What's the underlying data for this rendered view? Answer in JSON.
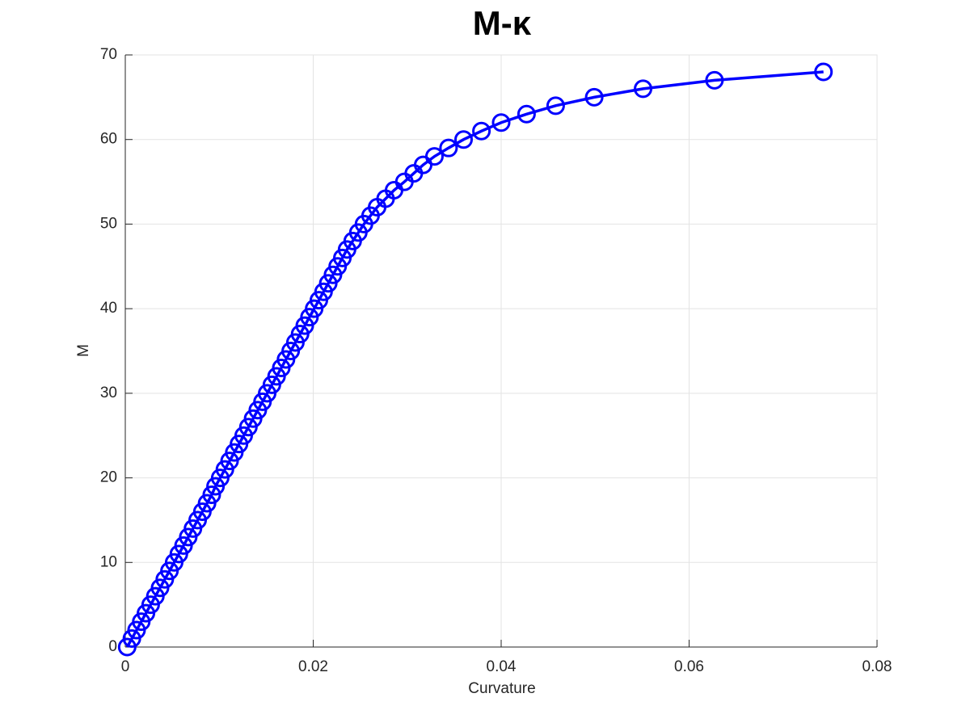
{
  "chart_data": {
    "type": "line",
    "title": "M-κ",
    "xlabel": "Curvature",
    "ylabel": "M",
    "x": [
      0.0002,
      0.0007,
      0.0012,
      0.0017,
      0.0022,
      0.0027,
      0.0032,
      0.0037,
      0.0042,
      0.0047,
      0.0052,
      0.0057,
      0.0062,
      0.0067,
      0.0072,
      0.0077,
      0.0082,
      0.0087,
      0.0092,
      0.0096,
      0.0101,
      0.0106,
      0.0111,
      0.0116,
      0.0121,
      0.0126,
      0.0131,
      0.0136,
      0.0141,
      0.0146,
      0.0151,
      0.0156,
      0.0161,
      0.0166,
      0.0171,
      0.0176,
      0.0181,
      0.0186,
      0.0191,
      0.0196,
      0.0201,
      0.0206,
      0.0211,
      0.0216,
      0.0221,
      0.0226,
      0.0231,
      0.0236,
      0.0242,
      0.0248,
      0.0254,
      0.0261,
      0.0268,
      0.0277,
      0.0286,
      0.0297,
      0.0307,
      0.0317,
      0.0329,
      0.0344,
      0.036,
      0.0379,
      0.04,
      0.0427,
      0.0458,
      0.0499,
      0.0551,
      0.0627,
      0.0743
    ],
    "values": [
      0,
      1,
      2,
      3,
      4,
      5,
      6,
      7,
      8,
      9,
      10,
      11,
      12,
      13,
      14,
      15,
      16,
      17,
      18,
      19,
      20,
      21,
      22,
      23,
      24,
      25,
      26,
      27,
      28,
      29,
      30,
      31,
      32,
      33,
      34,
      35,
      36,
      37,
      38,
      39,
      40,
      41,
      42,
      43,
      44,
      45,
      46,
      47,
      48,
      49,
      50,
      51,
      52,
      53,
      54,
      55,
      56,
      57,
      58,
      59,
      60,
      61,
      62,
      63,
      64,
      65,
      66,
      67,
      68
    ],
    "color": "#0000ff",
    "marker": "circle",
    "xlim": [
      0,
      0.08
    ],
    "xticks": [
      0,
      0.02,
      0.04,
      0.06,
      0.08
    ],
    "ylim": [
      0,
      70
    ],
    "yticks": [
      0,
      10,
      20,
      30,
      40,
      50,
      60,
      70
    ],
    "grid": true
  }
}
